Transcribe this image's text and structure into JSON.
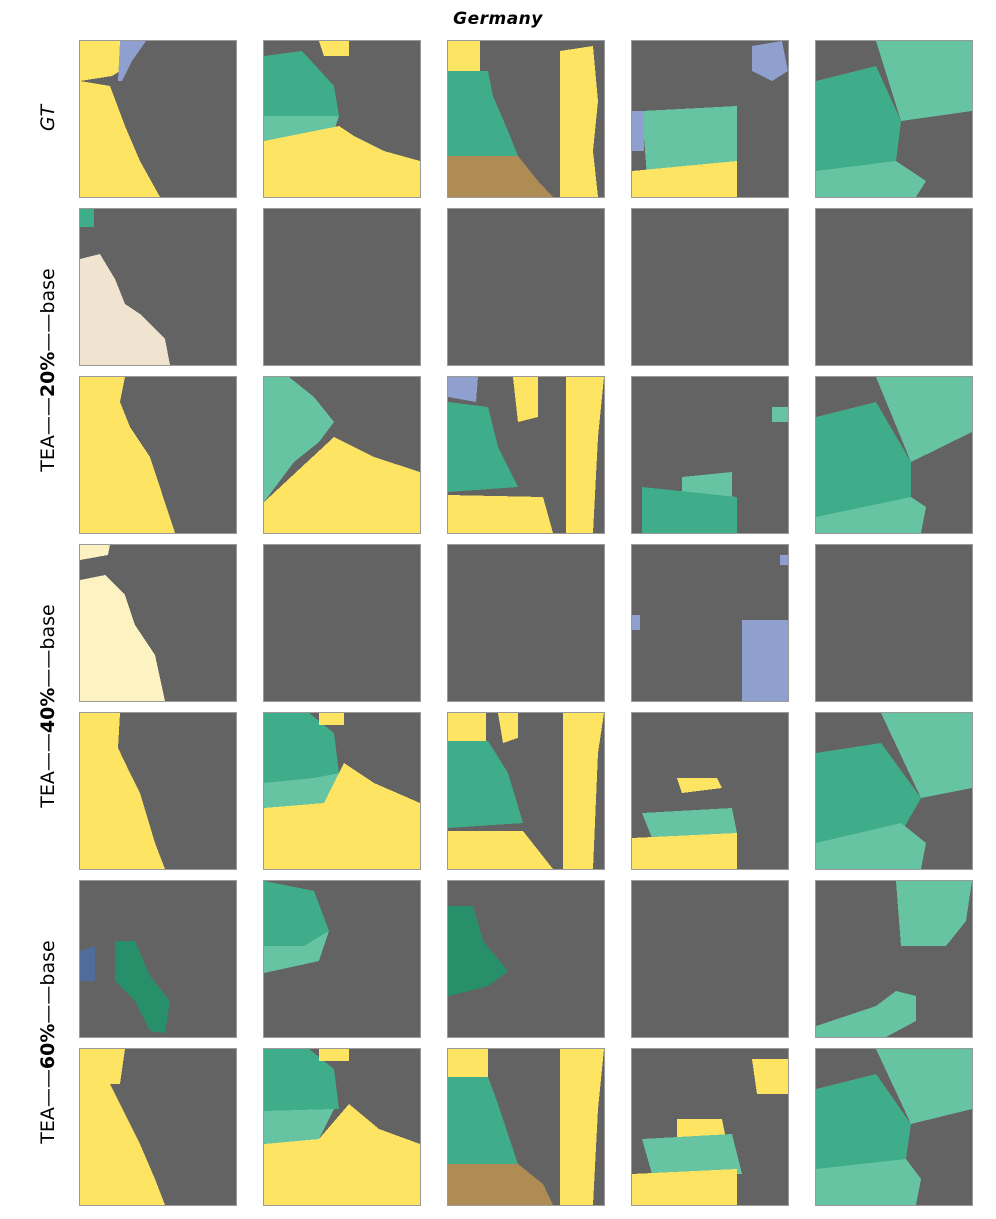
{
  "title": "Germany",
  "rows": [
    {
      "label": {
        "prefix": "",
        "pct": "",
        "suffix": "",
        "italic": "GT"
      }
    },
    {
      "label": {
        "prefix": "",
        "pct": "",
        "suffix": "base",
        "italic": ""
      }
    },
    {
      "label": {
        "prefix": "TEA",
        "pct": "20%",
        "suffix": "",
        "italic": ""
      }
    },
    {
      "label": {
        "prefix": "",
        "pct": "",
        "suffix": "base",
        "italic": ""
      }
    },
    {
      "label": {
        "prefix": "TEA",
        "pct": "40%",
        "suffix": "",
        "italic": ""
      }
    },
    {
      "label": {
        "prefix": "",
        "pct": "",
        "suffix": "base",
        "italic": ""
      }
    },
    {
      "label": {
        "prefix": "TEA",
        "pct": "60%",
        "suffix": "",
        "italic": ""
      }
    }
  ],
  "colors": {
    "background": "#636363",
    "yellow": "#fde462",
    "teal_dark": "#3fac8a",
    "teal_light": "#66c4a2",
    "green_dark": "#27906a",
    "lavender": "#8f9fce",
    "steel_blue": "#4f6c9b",
    "tan": "#b08c55",
    "cream": "#f0e3cf",
    "pale_yellow": "#fdf2c2"
  }
}
